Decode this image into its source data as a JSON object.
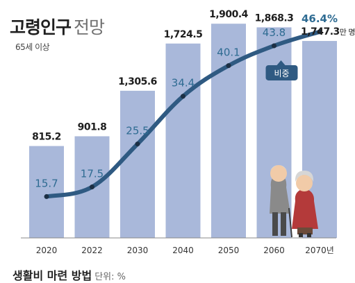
{
  "header": {
    "title_bold": "고령인구",
    "title_light": "전망",
    "subtitle": "65세 이상"
  },
  "colors": {
    "bar": "#a9b8da",
    "line": "#2f5a82",
    "ratio_label": "#2e6b92",
    "tag_bg": "#2f5a82",
    "pop_label": "#1e1e1e"
  },
  "chart_data": {
    "type": "bar",
    "categories": [
      "2020",
      "2022",
      "2030",
      "2040",
      "2050",
      "2060",
      "2070"
    ],
    "x_suffix_last": "년",
    "series": [
      {
        "values": [
          815.2,
          901.8,
          1305.6,
          1724.5,
          1900.4,
          1868.3,
          1747.3
        ],
        "labels": [
          "815.2",
          "901.8",
          "1,305.6",
          "1,724.5",
          "1,900.4",
          "1,868.3",
          "1,747.3"
        ],
        "unit": "만 명"
      },
      {
        "type": "line",
        "values": [
          15.7,
          17.5,
          25.5,
          34.4,
          40.1,
          43.8,
          46.4
        ],
        "labels": [
          "15.7",
          "17.5",
          "25.5",
          "34.4",
          "40.1",
          "43.8",
          "46.4%"
        ],
        "tag": "비중"
      }
    ],
    "ylim": [
      0,
      2000
    ],
    "y2lim": [
      8,
      50
    ]
  },
  "next_section": {
    "title": "생활비 마련 방법",
    "unit": "단위: %"
  }
}
